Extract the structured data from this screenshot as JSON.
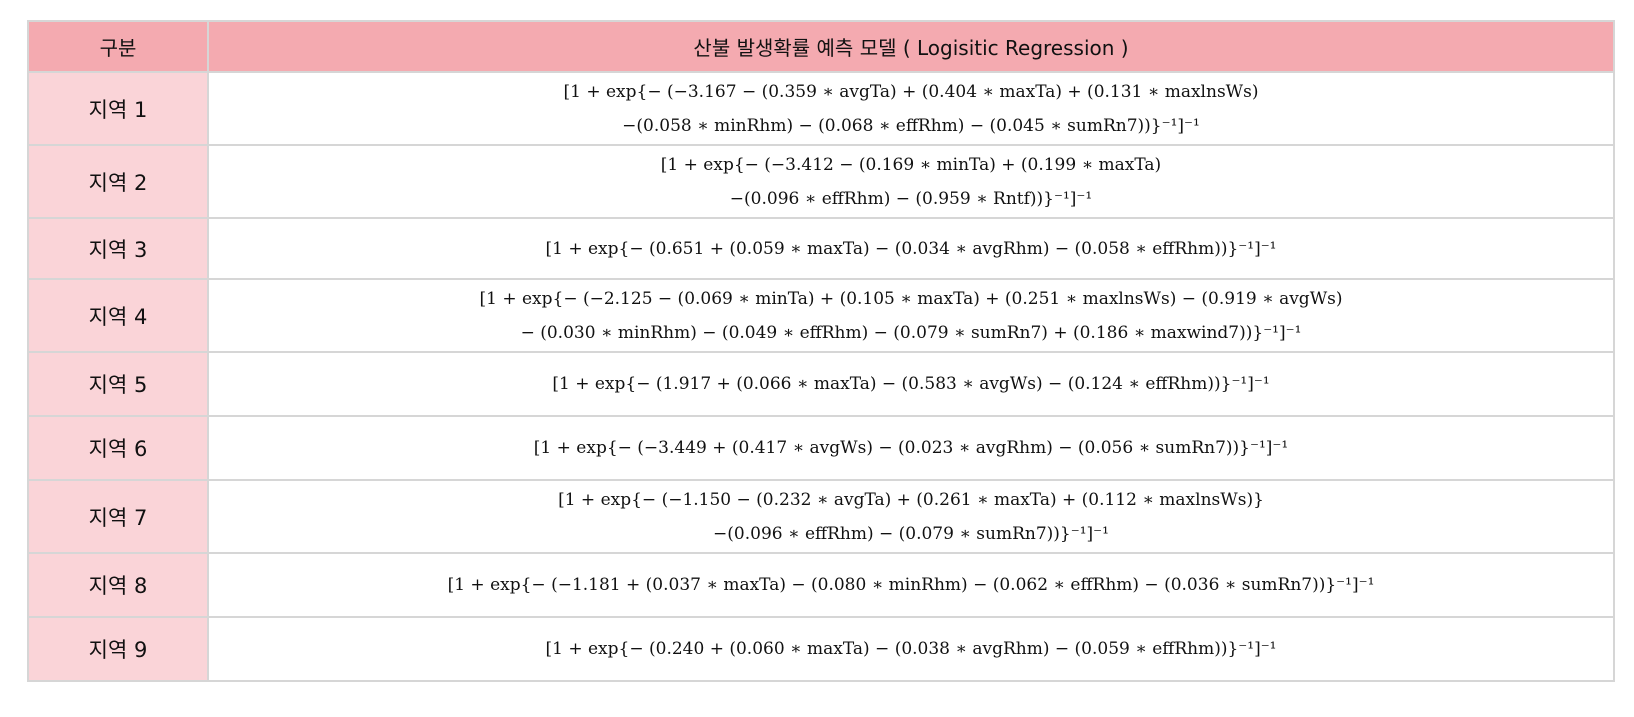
{
  "header": {
    "col_category": "구분",
    "col_model": "산불 발생확률 예측 모델 ( Logisitic Regression )"
  },
  "rows": [
    {
      "region": "지역 1",
      "lines": [
        "[1 + exp{− (−3.167 − (0.359 ∗ avgTa) + (0.404 ∗ maxTa) + (0.131 ∗ maxlnsWs)",
        "−(0.058 ∗ minRhm) − (0.068 ∗ effRhm) − (0.045 ∗ sumRn7))}⁻¹]⁻¹"
      ]
    },
    {
      "region": "지역 2",
      "lines": [
        "[1 + exp{− (−3.412 − (0.169 ∗ minTa) + (0.199 ∗ maxTa)",
        "−(0.096 ∗ effRhm) − (0.959 ∗ Rntf))}⁻¹]⁻¹"
      ]
    },
    {
      "region": "지역 3",
      "lines": [
        "[1 + exp{− (0.651 + (0.059 ∗ maxTa) − (0.034 ∗ avgRhm) − (0.058 ∗ effRhm))}⁻¹]⁻¹"
      ]
    },
    {
      "region": "지역 4",
      "lines": [
        "[1 + exp{− (−2.125 − (0.069 ∗ minTa) + (0.105 ∗ maxTa) + (0.251 ∗ maxlnsWs) − (0.919 ∗ avgWs)",
        "− (0.030 ∗ minRhm) − (0.049 ∗ effRhm) − (0.079 ∗ sumRn7) + (0.186 ∗ maxwind7))}⁻¹]⁻¹"
      ]
    },
    {
      "region": "지역 5",
      "lines": [
        "[1 + exp{− (1.917 + (0.066 ∗ maxTa) − (0.583 ∗ avgWs) − (0.124 ∗ effRhm))}⁻¹]⁻¹"
      ]
    },
    {
      "region": "지역 6",
      "lines": [
        "[1 + exp{− (−3.449 + (0.417 ∗ avgWs) − (0.023 ∗ avgRhm) − (0.056 ∗ sumRn7))}⁻¹]⁻¹"
      ]
    },
    {
      "region": "지역 7",
      "lines": [
        "[1 + exp{− (−1.150 − (0.232 ∗ avgTa) + (0.261 ∗ maxTa) + (0.112 ∗ maxlnsWs)}",
        "−(0.096 ∗ effRhm) − (0.079 ∗ sumRn7))}⁻¹]⁻¹"
      ]
    },
    {
      "region": "지역 8",
      "lines": [
        "[1 + exp{− (−1.181 + (0.037 ∗ maxTa) − (0.080 ∗ minRhm) − (0.062 ∗ effRhm) − (0.036 ∗ sumRn7))}⁻¹]⁻¹"
      ]
    },
    {
      "region": "지역 9",
      "lines": [
        "[1 + exp{− (0.240 + (0.060 ∗ maxTa) − (0.038 ∗ avgRhm) − (0.059 ∗ effRhm))}⁻¹]⁻¹"
      ]
    }
  ]
}
